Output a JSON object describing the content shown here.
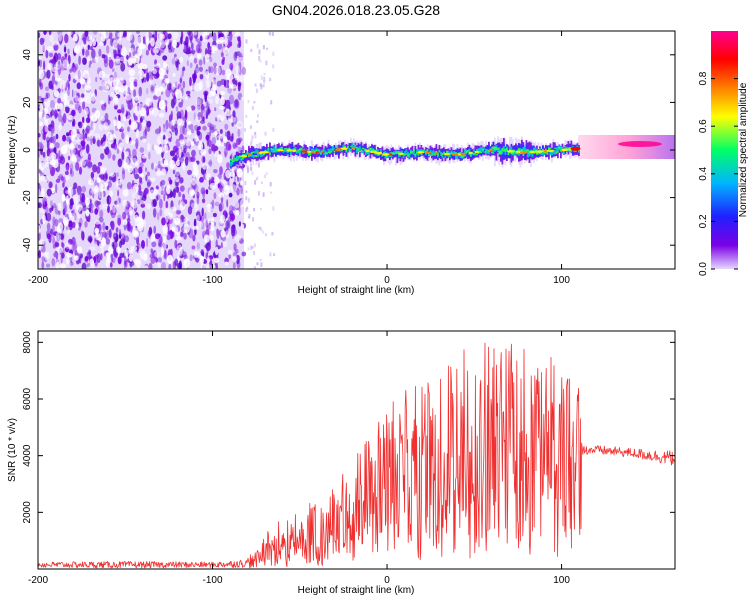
{
  "chart_data": [
    {
      "type": "heatmap",
      "title": "GN04.2026.018.23.05.G28",
      "xlabel": "Height of straight line (km)",
      "ylabel": "Frequency (Hz)",
      "xlim": [
        -200,
        165
      ],
      "ylim": [
        -50,
        50
      ],
      "xticks": [
        -200,
        -100,
        0,
        100
      ],
      "yticks": [
        -40,
        -20,
        0,
        20,
        40
      ],
      "colorbar": {
        "label": "Normalized spectral amplitude",
        "range": [
          0,
          1
        ],
        "ticks": [
          "0.0",
          "0.2",
          "0.4",
          "0.6",
          "0.8"
        ],
        "colors": [
          "#e6d6ff",
          "#7a00e6",
          "#2020ff",
          "#00b4ff",
          "#00ff66",
          "#ffff00",
          "#ff8000",
          "#ff0000",
          "#ff0090"
        ]
      },
      "noise_region_x": [
        -200,
        -82
      ],
      "ridge": {
        "x": [
          -90,
          -80,
          -60,
          -40,
          -20,
          0,
          20,
          40,
          60,
          80,
          100,
          120,
          140,
          165
        ],
        "freq": [
          -5,
          -2,
          0,
          -1,
          1,
          -2,
          -1,
          -2,
          0,
          -1,
          0,
          1,
          2,
          2
        ]
      },
      "colors": {
        "accent": "#f03030"
      }
    },
    {
      "type": "line",
      "xlabel": "Height of straight line (km)",
      "ylabel": "SNR (10 * v/v)",
      "xlim": [
        -200,
        165
      ],
      "ylim": [
        0,
        8400
      ],
      "xticks": [
        -200,
        -100,
        0,
        100
      ],
      "yticks": [
        2000,
        4000,
        6000,
        8000
      ],
      "series": [
        {
          "name": "SNR",
          "color": "#f03030",
          "x": [
            -200,
            -150,
            -100,
            -80,
            -70,
            -60,
            -50,
            -40,
            -30,
            -20,
            -10,
            0,
            10,
            20,
            30,
            40,
            50,
            60,
            70,
            80,
            90,
            100,
            110,
            112,
            120,
            140,
            165
          ],
          "mean": [
            150,
            150,
            150,
            200,
            500,
            700,
            900,
            1000,
            1300,
            1700,
            2200,
            2600,
            2900,
            3200,
            3300,
            3500,
            3600,
            3700,
            3800,
            3900,
            4100,
            4200,
            4300,
            4200,
            4200,
            4100,
            3900
          ],
          "peak": [
            280,
            300,
            280,
            380,
            1300,
            1800,
            2200,
            2600,
            3100,
            3800,
            4800,
            5700,
            6400,
            6800,
            7000,
            7600,
            8100,
            7900,
            8200,
            8000,
            7700,
            7300,
            6500,
            4350,
            4350,
            4250,
            4150
          ]
        }
      ]
    }
  ]
}
